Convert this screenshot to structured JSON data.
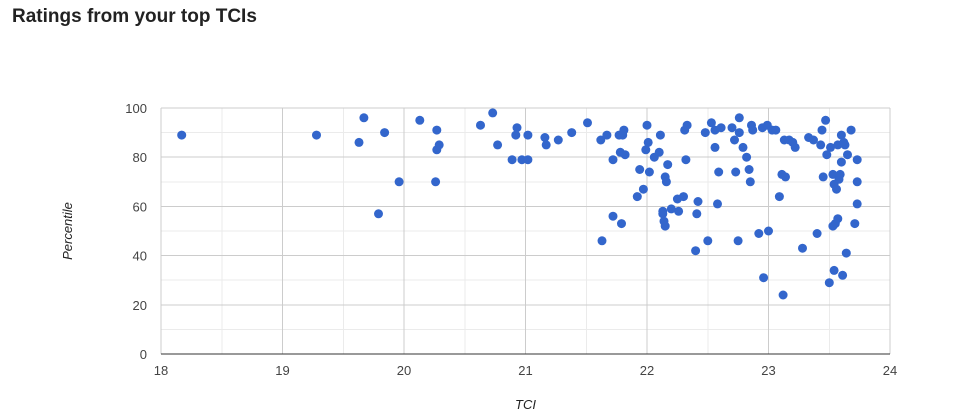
{
  "page": {
    "title": "Ratings from your top TCIs"
  },
  "chart_data": {
    "type": "scatter",
    "title": "",
    "xlabel": "TCI",
    "ylabel": "Percentile",
    "xlim": [
      18,
      24
    ],
    "ylim": [
      0,
      100
    ],
    "x_ticks": [
      18,
      19,
      20,
      21,
      22,
      23,
      24
    ],
    "y_ticks": [
      0,
      20,
      40,
      60,
      80,
      100
    ],
    "grid": true,
    "legend": "none",
    "colors": {
      "points": "#3366cc",
      "major_grid": "#cccccc",
      "minor_grid": "#ebebeb",
      "axis": "#333333"
    },
    "points": [
      [
        18.17,
        89
      ],
      [
        19.28,
        89
      ],
      [
        19.63,
        86
      ],
      [
        19.67,
        96
      ],
      [
        19.79,
        57
      ],
      [
        19.84,
        90
      ],
      [
        19.96,
        70
      ],
      [
        20.13,
        95
      ],
      [
        20.26,
        70
      ],
      [
        20.27,
        91
      ],
      [
        20.27,
        83
      ],
      [
        20.29,
        85
      ],
      [
        20.63,
        93
      ],
      [
        20.73,
        98
      ],
      [
        20.77,
        85
      ],
      [
        20.89,
        79
      ],
      [
        20.92,
        89
      ],
      [
        20.93,
        92
      ],
      [
        20.97,
        79
      ],
      [
        21.02,
        89
      ],
      [
        21.02,
        79
      ],
      [
        21.16,
        88
      ],
      [
        21.17,
        85
      ],
      [
        21.27,
        87
      ],
      [
        21.38,
        90
      ],
      [
        21.51,
        94
      ],
      [
        21.62,
        87
      ],
      [
        21.63,
        46
      ],
      [
        21.67,
        89
      ],
      [
        21.72,
        56
      ],
      [
        21.72,
        79
      ],
      [
        21.77,
        89
      ],
      [
        21.78,
        82
      ],
      [
        21.79,
        53
      ],
      [
        21.8,
        89
      ],
      [
        21.81,
        91
      ],
      [
        21.82,
        81
      ],
      [
        21.92,
        64
      ],
      [
        21.94,
        75
      ],
      [
        21.97,
        67
      ],
      [
        21.99,
        83
      ],
      [
        22.0,
        93
      ],
      [
        22.01,
        86
      ],
      [
        22.02,
        74
      ],
      [
        22.06,
        80
      ],
      [
        22.1,
        82
      ],
      [
        22.11,
        89
      ],
      [
        22.13,
        58
      ],
      [
        22.13,
        57
      ],
      [
        22.14,
        54
      ],
      [
        22.15,
        52
      ],
      [
        22.15,
        72
      ],
      [
        22.16,
        70
      ],
      [
        22.17,
        77
      ],
      [
        22.2,
        59
      ],
      [
        22.25,
        63
      ],
      [
        22.26,
        58
      ],
      [
        22.3,
        64
      ],
      [
        22.31,
        91
      ],
      [
        22.32,
        79
      ],
      [
        22.33,
        93
      ],
      [
        22.4,
        42
      ],
      [
        22.41,
        57
      ],
      [
        22.42,
        62
      ],
      [
        22.48,
        90
      ],
      [
        22.5,
        46
      ],
      [
        22.53,
        94
      ],
      [
        22.56,
        84
      ],
      [
        22.56,
        91
      ],
      [
        22.58,
        61
      ],
      [
        22.59,
        74
      ],
      [
        22.61,
        92
      ],
      [
        22.7,
        92
      ],
      [
        22.72,
        87
      ],
      [
        22.73,
        74
      ],
      [
        22.75,
        46
      ],
      [
        22.76,
        96
      ],
      [
        22.76,
        90
      ],
      [
        22.79,
        84
      ],
      [
        22.82,
        80
      ],
      [
        22.84,
        75
      ],
      [
        22.85,
        70
      ],
      [
        22.86,
        93
      ],
      [
        22.87,
        91
      ],
      [
        22.92,
        49
      ],
      [
        22.95,
        92
      ],
      [
        22.96,
        31
      ],
      [
        22.99,
        93
      ],
      [
        23.0,
        50
      ],
      [
        23.03,
        91
      ],
      [
        23.06,
        91
      ],
      [
        23.09,
        64
      ],
      [
        23.11,
        73
      ],
      [
        23.12,
        24
      ],
      [
        23.13,
        87
      ],
      [
        23.14,
        72
      ],
      [
        23.17,
        87
      ],
      [
        23.2,
        86
      ],
      [
        23.22,
        84
      ],
      [
        23.28,
        43
      ],
      [
        23.33,
        88
      ],
      [
        23.37,
        87
      ],
      [
        23.4,
        49
      ],
      [
        23.43,
        85
      ],
      [
        23.44,
        91
      ],
      [
        23.45,
        72
      ],
      [
        23.47,
        95
      ],
      [
        23.48,
        81
      ],
      [
        23.5,
        29
      ],
      [
        23.51,
        84
      ],
      [
        23.53,
        52
      ],
      [
        23.53,
        73
      ],
      [
        23.54,
        69
      ],
      [
        23.54,
        34
      ],
      [
        23.55,
        53
      ],
      [
        23.56,
        67
      ],
      [
        23.57,
        55
      ],
      [
        23.57,
        85
      ],
      [
        23.58,
        71
      ],
      [
        23.59,
        73
      ],
      [
        23.6,
        78
      ],
      [
        23.6,
        89
      ],
      [
        23.61,
        32
      ],
      [
        23.62,
        86
      ],
      [
        23.63,
        85
      ],
      [
        23.64,
        41
      ],
      [
        23.65,
        81
      ],
      [
        23.68,
        91
      ],
      [
        23.71,
        53
      ],
      [
        23.73,
        79
      ],
      [
        23.73,
        70
      ],
      [
        23.73,
        61
      ]
    ]
  }
}
